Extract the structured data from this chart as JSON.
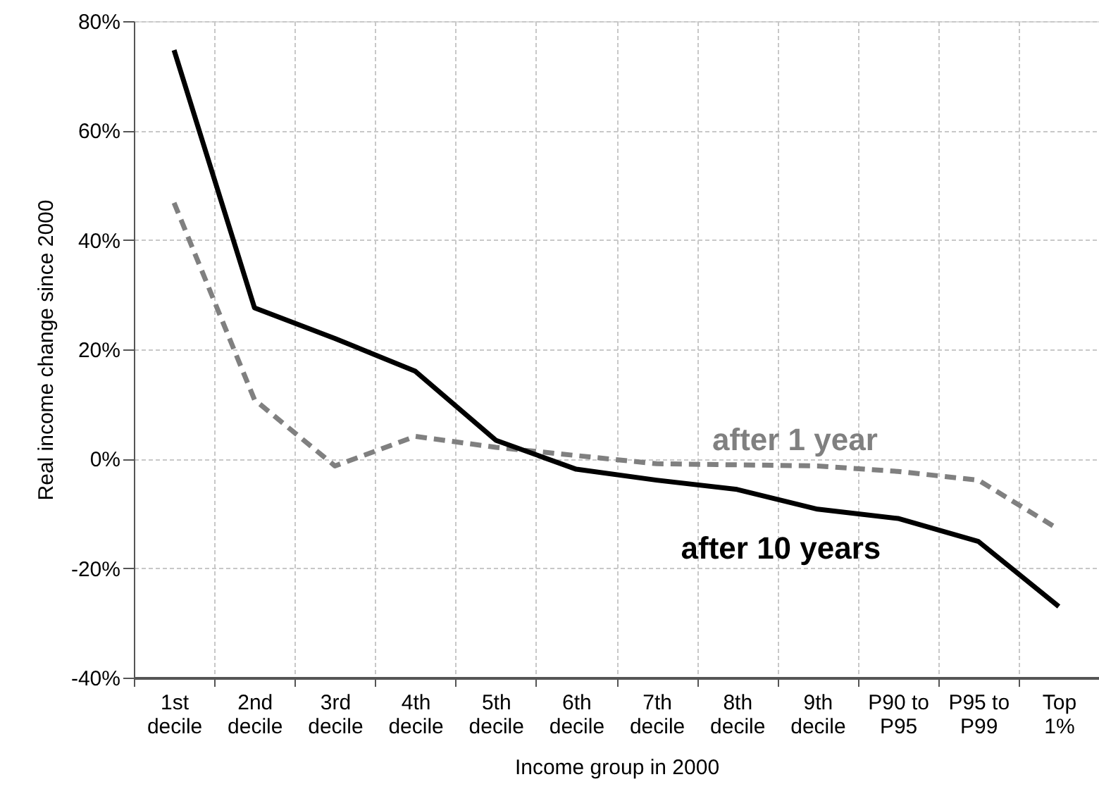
{
  "chart_data": {
    "type": "line",
    "xlabel": "Income group in 2000",
    "ylabel": "Real income change since 2000",
    "categories": [
      "1st decile",
      "2nd decile",
      "3rd decile",
      "4th decile",
      "5th decile",
      "6th decile",
      "7th decile",
      "8th decile",
      "9th decile",
      "P90 to P95",
      "P95 to P99",
      "Top 1%"
    ],
    "series": [
      {
        "name": "after 1 year",
        "color": "#808080",
        "line_style": "dashed",
        "values": [
          46.8,
          10.8,
          -1.3,
          4.1,
          2.1,
          0.6,
          -0.9,
          -1.1,
          -1.3,
          -2.3,
          -3.9,
          -12.9
        ]
      },
      {
        "name": "after 10 years",
        "color": "#000000",
        "line_style": "solid",
        "values": [
          74.7,
          27.6,
          22,
          16,
          3.4,
          -1.9,
          -3.9,
          -5.6,
          -9.2,
          -10.9,
          -15.1,
          -27
        ]
      }
    ],
    "ylim": [
      -40,
      80
    ],
    "yticks": [
      {
        "value": -40,
        "label": "-40%"
      },
      {
        "value": -20,
        "label": "-20%"
      },
      {
        "value": 0,
        "label": "0%"
      },
      {
        "value": 20,
        "label": "20%"
      },
      {
        "value": 40,
        "label": "40%"
      },
      {
        "value": 60,
        "label": "60%"
      },
      {
        "value": 80,
        "label": "80%"
      }
    ],
    "grid": true,
    "legend": false,
    "marker": "none"
  }
}
